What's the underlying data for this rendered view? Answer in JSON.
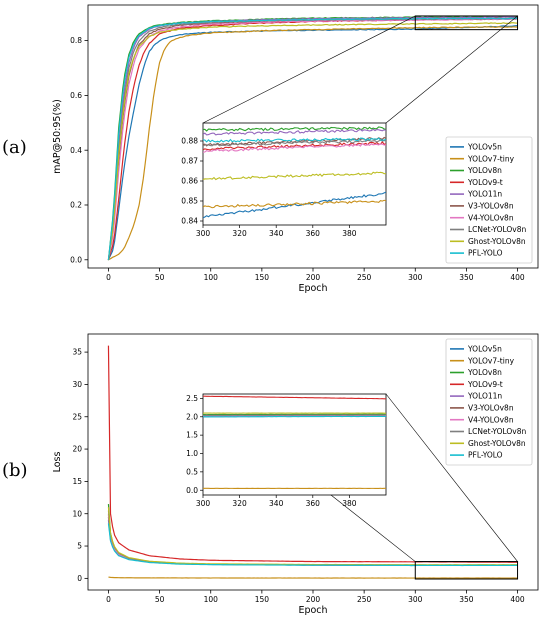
{
  "chart_data": [
    {
      "panel_label": "(a)",
      "type": "line",
      "xlabel": "Epoch",
      "ylabel": "mAP@50:95(%)",
      "xlim": [
        -20,
        420
      ],
      "ylim": [
        -0.03,
        0.93
      ],
      "xticks": [
        0,
        50,
        100,
        150,
        200,
        250,
        300,
        350,
        400
      ],
      "yticks": [
        "0.0",
        "0.2",
        "0.4",
        "0.6",
        "0.8"
      ],
      "legend_position": "lower right",
      "inset": {
        "xlim": [
          300,
          400
        ],
        "ylim": [
          0.838,
          0.889
        ],
        "xticks": [
          300,
          320,
          340,
          360,
          380
        ],
        "yticks": [
          "0.84",
          "0.85",
          "0.86",
          "0.87",
          "0.88"
        ],
        "zoom_box": {
          "x": [
            300,
            400
          ],
          "y": [
            0.84,
            0.89
          ]
        },
        "series": [
          {
            "name": "YOLOv5n",
            "start": 0.842,
            "end": 0.854
          },
          {
            "name": "YOLOv7-tiny",
            "start": 0.847,
            "end": 0.85
          },
          {
            "name": "YOLOv8n",
            "start": 0.8855,
            "end": 0.8865
          },
          {
            "name": "YOLOv9-t",
            "start": 0.876,
            "end": 0.879
          },
          {
            "name": "YOLO11n",
            "start": 0.8835,
            "end": 0.8855
          },
          {
            "name": "V3-YOLOv8n",
            "start": 0.878,
            "end": 0.8815
          },
          {
            "name": "V4-YOLOv8n",
            "start": 0.875,
            "end": 0.8785
          },
          {
            "name": "LCNet-YOLOv8n",
            "start": 0.878,
            "end": 0.88
          },
          {
            "name": "Ghost-YOLOv8n",
            "start": 0.861,
            "end": 0.864
          },
          {
            "name": "PFL-YOLO",
            "start": 0.88,
            "end": 0.881
          }
        ]
      },
      "series": [
        {
          "name": "YOLOv5n",
          "color": "#1f77b4",
          "final": 0.854,
          "x": [
            0,
            5,
            10,
            15,
            20,
            25,
            30,
            35,
            40,
            45,
            50,
            60,
            70,
            80,
            100,
            150,
            200,
            250,
            300,
            350,
            400
          ],
          "y": [
            0.0,
            0.04,
            0.18,
            0.33,
            0.45,
            0.55,
            0.64,
            0.71,
            0.76,
            0.785,
            0.8,
            0.815,
            0.822,
            0.826,
            0.83,
            0.835,
            0.838,
            0.84,
            0.842,
            0.848,
            0.854
          ]
        },
        {
          "name": "YOLOv7-tiny",
          "color": "#c8901a",
          "final": 0.85,
          "x": [
            0,
            5,
            10,
            15,
            20,
            25,
            30,
            35,
            40,
            45,
            50,
            55,
            60,
            70,
            80,
            100,
            150,
            200,
            250,
            300,
            350,
            400
          ],
          "y": [
            0.0,
            0.01,
            0.02,
            0.04,
            0.08,
            0.13,
            0.2,
            0.32,
            0.48,
            0.62,
            0.72,
            0.77,
            0.795,
            0.812,
            0.82,
            0.828,
            0.836,
            0.84,
            0.844,
            0.847,
            0.849,
            0.85
          ]
        },
        {
          "name": "YOLOv8n",
          "color": "#2ca02c",
          "final": 0.8865,
          "x": [
            0,
            5,
            10,
            15,
            20,
            25,
            30,
            40,
            50,
            70,
            100,
            150,
            200,
            300,
            400
          ],
          "y": [
            0.0,
            0.18,
            0.48,
            0.66,
            0.75,
            0.8,
            0.825,
            0.848,
            0.858,
            0.866,
            0.872,
            0.878,
            0.882,
            0.8855,
            0.8865
          ]
        },
        {
          "name": "YOLOv9-t",
          "color": "#d62728",
          "final": 0.879,
          "x": [
            0,
            5,
            10,
            15,
            20,
            25,
            30,
            35,
            40,
            50,
            70,
            100,
            150,
            200,
            300,
            400
          ],
          "y": [
            0.0,
            0.06,
            0.22,
            0.4,
            0.54,
            0.64,
            0.71,
            0.76,
            0.79,
            0.825,
            0.845,
            0.855,
            0.864,
            0.87,
            0.876,
            0.879
          ]
        },
        {
          "name": "YOLO11n",
          "color": "#9467bd",
          "final": 0.8855,
          "x": [
            0,
            5,
            10,
            15,
            20,
            25,
            30,
            40,
            50,
            70,
            100,
            150,
            200,
            300,
            400
          ],
          "y": [
            0.0,
            0.15,
            0.42,
            0.61,
            0.72,
            0.78,
            0.815,
            0.842,
            0.854,
            0.864,
            0.87,
            0.876,
            0.88,
            0.8835,
            0.8855
          ]
        },
        {
          "name": "V3-YOLOv8n",
          "color": "#8c564b",
          "final": 0.8815,
          "x": [
            0,
            5,
            10,
            15,
            20,
            25,
            30,
            40,
            50,
            70,
            100,
            150,
            200,
            300,
            400
          ],
          "y": [
            0.0,
            0.12,
            0.36,
            0.55,
            0.67,
            0.74,
            0.785,
            0.825,
            0.842,
            0.856,
            0.864,
            0.87,
            0.874,
            0.878,
            0.8815
          ]
        },
        {
          "name": "V4-YOLOv8n",
          "color": "#e377c2",
          "final": 0.8785,
          "x": [
            0,
            5,
            10,
            15,
            20,
            25,
            30,
            40,
            50,
            70,
            100,
            150,
            200,
            300,
            400
          ],
          "y": [
            0.0,
            0.1,
            0.32,
            0.51,
            0.64,
            0.72,
            0.77,
            0.815,
            0.835,
            0.85,
            0.86,
            0.867,
            0.871,
            0.875,
            0.8785
          ]
        },
        {
          "name": "LCNet-YOLOv8n",
          "color": "#7f7f7f",
          "final": 0.88,
          "x": [
            0,
            5,
            10,
            15,
            20,
            25,
            30,
            40,
            50,
            70,
            100,
            150,
            200,
            300,
            400
          ],
          "y": [
            0.0,
            0.14,
            0.4,
            0.58,
            0.7,
            0.765,
            0.8,
            0.835,
            0.848,
            0.86,
            0.866,
            0.872,
            0.875,
            0.878,
            0.88
          ]
        },
        {
          "name": "Ghost-YOLOv8n",
          "color": "#bcbd22",
          "final": 0.864,
          "x": [
            0,
            5,
            10,
            15,
            20,
            25,
            30,
            40,
            50,
            70,
            100,
            150,
            200,
            300,
            400
          ],
          "y": [
            0.0,
            0.13,
            0.38,
            0.56,
            0.68,
            0.74,
            0.78,
            0.815,
            0.83,
            0.842,
            0.849,
            0.854,
            0.857,
            0.861,
            0.864
          ]
        },
        {
          "name": "PFL-YOLO",
          "color": "#17becf",
          "final": 0.881,
          "x": [
            0,
            5,
            10,
            15,
            20,
            25,
            30,
            40,
            50,
            70,
            100,
            150,
            200,
            300,
            400
          ],
          "y": [
            0.0,
            0.17,
            0.46,
            0.64,
            0.74,
            0.79,
            0.82,
            0.845,
            0.855,
            0.864,
            0.869,
            0.874,
            0.877,
            0.88,
            0.881
          ]
        }
      ]
    },
    {
      "panel_label": "(b)",
      "type": "line",
      "xlabel": "Epoch",
      "ylabel": "Loss",
      "xlim": [
        -20,
        420
      ],
      "ylim": [
        -1.8,
        37.8
      ],
      "xticks": [
        0,
        50,
        100,
        150,
        200,
        250,
        300,
        350,
        400
      ],
      "yticks": [
        "0",
        "5",
        "10",
        "15",
        "20",
        "25",
        "30",
        "35"
      ],
      "legend_position": "upper right",
      "inset": {
        "xlim": [
          300,
          400
        ],
        "ylim": [
          -0.13,
          2.62
        ],
        "xticks": [
          300,
          320,
          340,
          360,
          380
        ],
        "yticks": [
          "0.0",
          "0.5",
          "1.0",
          "1.5",
          "2.0",
          "2.5"
        ],
        "zoom_box": {
          "x": [
            300,
            400
          ],
          "y": [
            -0.1,
            2.6
          ]
        },
        "series": [
          {
            "name": "YOLOv5n",
            "start": 2.0,
            "end": 2.02
          },
          {
            "name": "YOLOv7-tiny",
            "start": 0.05,
            "end": 0.05
          },
          {
            "name": "YOLOv8n",
            "start": 2.06,
            "end": 2.07
          },
          {
            "name": "YOLOv9-t",
            "start": 2.56,
            "end": 2.49
          },
          {
            "name": "YOLO11n",
            "start": 2.03,
            "end": 2.04
          },
          {
            "name": "V3-YOLOv8n",
            "start": 2.01,
            "end": 2.02
          },
          {
            "name": "V4-YOLOv8n",
            "start": 2.02,
            "end": 2.03
          },
          {
            "name": "LCNet-YOLOv8n",
            "start": 2.04,
            "end": 2.05
          },
          {
            "name": "Ghost-YOLOv8n",
            "start": 2.1,
            "end": 2.1
          },
          {
            "name": "PFL-YOLO",
            "start": 2.0,
            "end": 2.01
          }
        ]
      },
      "series": [
        {
          "name": "YOLOv5n",
          "color": "#1f77b4",
          "x": [
            0,
            2,
            5,
            10,
            20,
            40,
            70,
            100,
            200,
            300,
            400
          ],
          "y": [
            9.0,
            6.0,
            4.5,
            3.6,
            3.0,
            2.5,
            2.25,
            2.15,
            2.05,
            2.0,
            2.02
          ]
        },
        {
          "name": "YOLOv7-tiny",
          "color": "#c8901a",
          "x": [
            0,
            2,
            5,
            10,
            20,
            50,
            100,
            200,
            300,
            400
          ],
          "y": [
            0.2,
            0.15,
            0.12,
            0.1,
            0.09,
            0.07,
            0.06,
            0.05,
            0.05,
            0.05
          ]
        },
        {
          "name": "YOLOv8n",
          "color": "#2ca02c",
          "x": [
            0,
            2,
            5,
            10,
            20,
            40,
            70,
            100,
            200,
            300,
            400
          ],
          "y": [
            11.5,
            7.0,
            5.0,
            3.9,
            3.1,
            2.6,
            2.3,
            2.2,
            2.1,
            2.06,
            2.07
          ]
        },
        {
          "name": "YOLOv9-t",
          "color": "#d62728",
          "x": [
            0,
            2,
            5,
            10,
            20,
            40,
            70,
            100,
            200,
            300,
            400
          ],
          "y": [
            36.0,
            10.0,
            7.0,
            5.5,
            4.4,
            3.5,
            3.0,
            2.8,
            2.6,
            2.56,
            2.49
          ]
        },
        {
          "name": "YOLO11n",
          "color": "#9467bd",
          "x": [
            0,
            2,
            5,
            10,
            20,
            40,
            70,
            100,
            200,
            300,
            400
          ],
          "y": [
            10.0,
            6.5,
            4.8,
            3.8,
            3.0,
            2.55,
            2.28,
            2.18,
            2.08,
            2.03,
            2.04
          ]
        },
        {
          "name": "V3-YOLOv8n",
          "color": "#8c564b",
          "x": [
            0,
            2,
            5,
            10,
            20,
            40,
            70,
            100,
            200,
            300,
            400
          ],
          "y": [
            9.5,
            6.3,
            4.7,
            3.7,
            3.0,
            2.55,
            2.27,
            2.17,
            2.06,
            2.01,
            2.02
          ]
        },
        {
          "name": "V4-YOLOv8n",
          "color": "#e377c2",
          "x": [
            0,
            2,
            5,
            10,
            20,
            40,
            70,
            100,
            200,
            300,
            400
          ],
          "y": [
            9.8,
            6.4,
            4.7,
            3.7,
            3.0,
            2.55,
            2.28,
            2.18,
            2.07,
            2.02,
            2.03
          ]
        },
        {
          "name": "LCNet-YOLOv8n",
          "color": "#7f7f7f",
          "x": [
            0,
            2,
            5,
            10,
            20,
            40,
            70,
            100,
            200,
            300,
            400
          ],
          "y": [
            10.5,
            6.8,
            5.0,
            3.9,
            3.1,
            2.6,
            2.3,
            2.2,
            2.09,
            2.04,
            2.05
          ]
        },
        {
          "name": "Ghost-YOLOv8n",
          "color": "#bcbd22",
          "x": [
            0,
            2,
            5,
            10,
            20,
            40,
            70,
            100,
            200,
            300,
            400
          ],
          "y": [
            11.0,
            7.0,
            5.1,
            4.0,
            3.2,
            2.65,
            2.35,
            2.25,
            2.14,
            2.1,
            2.1
          ]
        },
        {
          "name": "PFL-YOLO",
          "color": "#17becf",
          "x": [
            0,
            2,
            5,
            10,
            20,
            40,
            70,
            100,
            200,
            300,
            400
          ],
          "y": [
            8.5,
            5.8,
            4.4,
            3.5,
            2.9,
            2.45,
            2.2,
            2.12,
            2.04,
            2.0,
            2.01
          ]
        }
      ]
    }
  ]
}
